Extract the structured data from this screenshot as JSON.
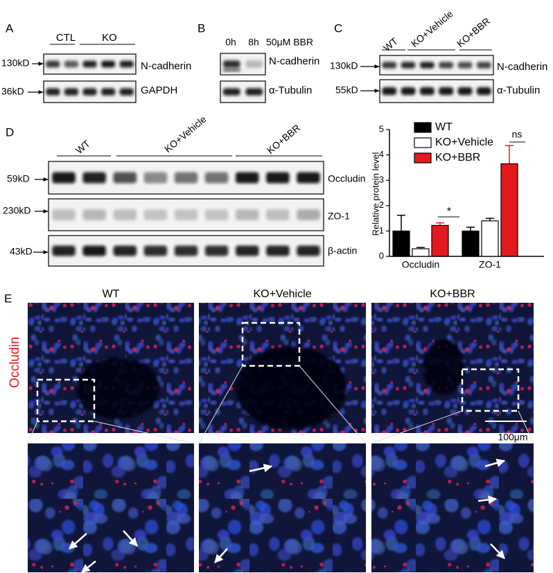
{
  "panels": {
    "A": {
      "label": "A",
      "groups": [
        "CTL",
        "KO"
      ],
      "markers": [
        "130kD",
        "36kD"
      ],
      "proteins": [
        "N-cadherin",
        "GAPDH"
      ]
    },
    "B": {
      "label": "B",
      "times": [
        "0h",
        "8h"
      ],
      "treatment": "50μM BBR",
      "proteins": [
        "N-cadherin",
        "α-Tubulin"
      ]
    },
    "C": {
      "label": "C",
      "groups": [
        "WT",
        "KO+Vehicle",
        "KO+BBR"
      ],
      "markers": [
        "130kD",
        "55kD"
      ],
      "proteins": [
        "N-cadherin",
        "α-Tubulin"
      ]
    },
    "D": {
      "label": "D",
      "groups": [
        "WT",
        "KO+Vehicle",
        "KO+BBR"
      ],
      "markers": [
        "59kD",
        "230kD",
        "43kD"
      ],
      "proteins": [
        "Occludin",
        "ZO-1",
        "β-actin"
      ]
    },
    "E": {
      "label": "E",
      "columns": [
        "WT",
        "KO+Vehicle",
        "KO+BBR"
      ],
      "stain": "Occludin",
      "scale_bar": "100μm"
    }
  },
  "chart_data": {
    "type": "bar",
    "ylabel": "Relative protein level",
    "categories": [
      "Occludin",
      "ZO-1"
    ],
    "series": [
      {
        "name": "WT",
        "color": "#000000",
        "values": [
          1.0,
          1.0
        ],
        "errors": [
          0.62,
          0.15
        ]
      },
      {
        "name": "KO+Vehicle",
        "color": "#ffffff",
        "values": [
          0.3,
          1.4
        ],
        "errors": [
          0.05,
          0.1
        ]
      },
      {
        "name": "KO+BBR",
        "color": "#e3191c",
        "values": [
          1.22,
          3.65
        ],
        "errors": [
          0.1,
          0.72
        ]
      }
    ],
    "ylim": [
      0,
      5
    ],
    "yticks": [
      0,
      1,
      2,
      3,
      4,
      5
    ],
    "annotations": [
      "*",
      "ns"
    ]
  }
}
